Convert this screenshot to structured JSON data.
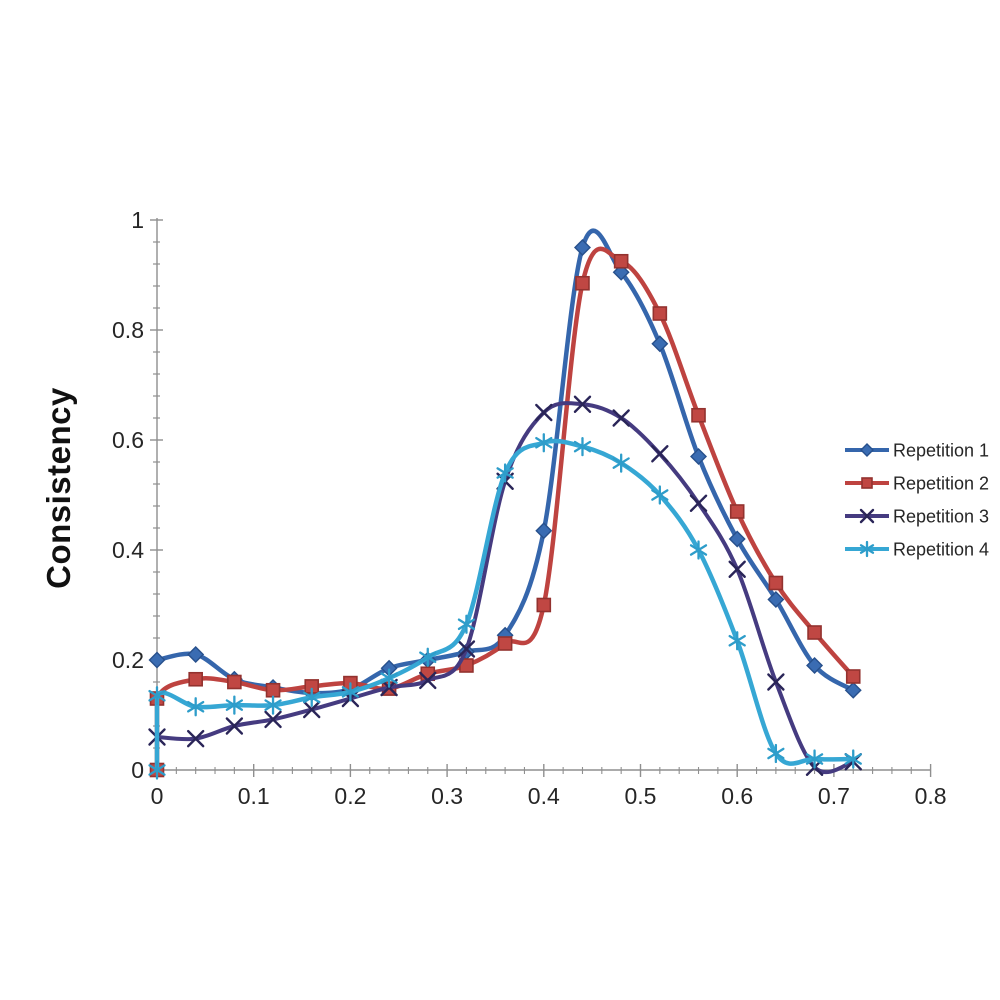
{
  "page": {
    "background": "#ffffff"
  },
  "chart_data": {
    "type": "line",
    "title": "",
    "xlabel": "",
    "ylabel": "Consistency",
    "xlim": [
      0,
      0.8
    ],
    "ylim": [
      0,
      1
    ],
    "grid": false,
    "line_style": "smooth",
    "legend_position": "right",
    "axis_color": "#8F8F8F",
    "tick_label_color": "#262626",
    "x_tick_labels": [
      "0",
      "0.1",
      "0.2",
      "0.3",
      "0.4",
      "0.5",
      "0.6",
      "0.7",
      "0.8"
    ],
    "x_tick_values": [
      0,
      0.1,
      0.2,
      0.3,
      0.4,
      0.5,
      0.6,
      0.7,
      0.8
    ],
    "x_minor_step": 0.02,
    "y_tick_labels": [
      "0",
      "0.2",
      "0.4",
      "0.6",
      "0.8",
      "1"
    ],
    "y_tick_values": [
      0,
      0.2,
      0.4,
      0.6,
      0.8,
      1
    ],
    "y_minor_step": 0.04,
    "series": [
      {
        "name": "Repetition 1",
        "color": "#3566AC",
        "marker": "diamond",
        "marker_color": "#3A6CB2",
        "marker_stroke": "#27508C",
        "points": [
          [
            0,
            0.2
          ],
          [
            0.04,
            0.21
          ],
          [
            0.08,
            0.165
          ],
          [
            0.12,
            0.15
          ],
          [
            0.16,
            0.14
          ],
          [
            0.2,
            0.147
          ],
          [
            0.24,
            0.185
          ],
          [
            0.28,
            0.2
          ],
          [
            0.32,
            0.215
          ],
          [
            0.36,
            0.245
          ],
          [
            0.4,
            0.435
          ],
          [
            0.44,
            0.95
          ],
          [
            0.48,
            0.905
          ],
          [
            0.52,
            0.775
          ],
          [
            0.56,
            0.57
          ],
          [
            0.6,
            0.42
          ],
          [
            0.64,
            0.31
          ],
          [
            0.68,
            0.19
          ],
          [
            0.72,
            0.145
          ]
        ]
      },
      {
        "name": "Repetition 2",
        "color": "#BE4340",
        "marker": "square",
        "marker_color": "#C04743",
        "marker_stroke": "#93322F",
        "points": [
          [
            0,
            0
          ],
          [
            0,
            0.13
          ],
          [
            0.04,
            0.165
          ],
          [
            0.08,
            0.16
          ],
          [
            0.12,
            0.145
          ],
          [
            0.16,
            0.152
          ],
          [
            0.2,
            0.158
          ],
          [
            0.24,
            0.148
          ],
          [
            0.28,
            0.175
          ],
          [
            0.32,
            0.19
          ],
          [
            0.36,
            0.23
          ],
          [
            0.4,
            0.3
          ],
          [
            0.44,
            0.885
          ],
          [
            0.48,
            0.925
          ],
          [
            0.52,
            0.83
          ],
          [
            0.56,
            0.645
          ],
          [
            0.6,
            0.47
          ],
          [
            0.64,
            0.34
          ],
          [
            0.68,
            0.25
          ],
          [
            0.72,
            0.17
          ]
        ]
      },
      {
        "name": "Repetition 3",
        "color": "#453B80",
        "marker": "x",
        "marker_color": "#2A2558",
        "marker_stroke": "#2A2558",
        "points": [
          [
            0,
            0.06
          ],
          [
            0.04,
            0.057
          ],
          [
            0.08,
            0.08
          ],
          [
            0.12,
            0.092
          ],
          [
            0.16,
            0.11
          ],
          [
            0.2,
            0.13
          ],
          [
            0.24,
            0.15
          ],
          [
            0.28,
            0.163
          ],
          [
            0.32,
            0.22
          ],
          [
            0.36,
            0.525
          ],
          [
            0.4,
            0.65
          ],
          [
            0.44,
            0.665
          ],
          [
            0.48,
            0.64
          ],
          [
            0.52,
            0.575
          ],
          [
            0.56,
            0.485
          ],
          [
            0.6,
            0.365
          ],
          [
            0.64,
            0.16
          ],
          [
            0.68,
            0.005
          ],
          [
            0.72,
            0.015
          ]
        ]
      },
      {
        "name": "Repetition 4",
        "color": "#36A7D4",
        "marker": "asterisk",
        "marker_color": "#36A7D4",
        "marker_stroke": "#2E9DCA",
        "points": [
          [
            0,
            0
          ],
          [
            0,
            0.135
          ],
          [
            0.04,
            0.115
          ],
          [
            0.08,
            0.118
          ],
          [
            0.12,
            0.118
          ],
          [
            0.16,
            0.132
          ],
          [
            0.2,
            0.142
          ],
          [
            0.24,
            0.167
          ],
          [
            0.28,
            0.205
          ],
          [
            0.32,
            0.265
          ],
          [
            0.36,
            0.54
          ],
          [
            0.4,
            0.595
          ],
          [
            0.44,
            0.588
          ],
          [
            0.48,
            0.558
          ],
          [
            0.52,
            0.5
          ],
          [
            0.56,
            0.4
          ],
          [
            0.6,
            0.235
          ],
          [
            0.64,
            0.03
          ],
          [
            0.68,
            0.02
          ],
          [
            0.72,
            0.02
          ]
        ]
      }
    ]
  }
}
